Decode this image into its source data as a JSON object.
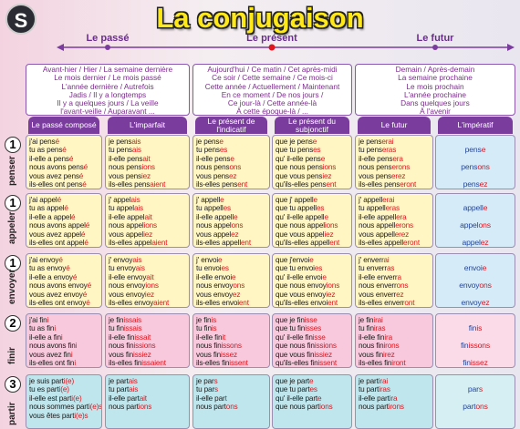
{
  "header": {
    "logo": "S",
    "title": "La conjugaison"
  },
  "timeline": [
    "Le passé",
    "Le présent",
    "Le futur"
  ],
  "time_expressions": [
    [
      "Avant-hier / Hier / La semaine dernière",
      "Le mois dernier / Le mois passé",
      "L'année dernière / Autrefois",
      "Jadis / Il y a longtemps",
      "Il y a quelques jours / La veille",
      "l'avant-veille / Auparavant ..."
    ],
    [
      "Aujourd'hui / Ce matin / Cet après-midi",
      "Ce soir / Cette semaine / Ce mois-ci",
      "Cette année / Actuellement / Maintenant",
      "En ce moment / De nos jours /",
      "Ce jour-là / Cette année-là",
      "À cette époque-là / ..."
    ],
    [
      "Demain / Après-demain",
      "La semaine prochaine",
      "Le mois prochain",
      "L'année prochaine",
      "Dans quelques jours",
      "À l'avenir"
    ]
  ],
  "tenses": [
    "Le passé composé",
    "L'imparfait",
    "Le présent de l'indicatif",
    "Le présent du subjonctif",
    "Le futur",
    "L'impératif"
  ],
  "verbs": [
    {
      "group": "1",
      "name": "penser",
      "forms": [
        [
          [
            "j'ai pens",
            "é"
          ],
          [
            "tu as pens",
            "é"
          ],
          [
            "il-elle a pens",
            "é"
          ],
          [
            "nous avons pens",
            "é"
          ],
          [
            "vous avez pens",
            "é"
          ],
          [
            "ils-elles ont pens",
            "é"
          ]
        ],
        [
          [
            "je pens",
            "ais"
          ],
          [
            "tu pens",
            "ais"
          ],
          [
            "il-elle pens",
            "ait"
          ],
          [
            "nous pens",
            "ions"
          ],
          [
            "vous pens",
            "iez"
          ],
          [
            "ils-elles pens",
            "aient"
          ]
        ],
        [
          [
            "je pens",
            "e"
          ],
          [
            "tu pens",
            "es"
          ],
          [
            "il-elle pens",
            "e"
          ],
          [
            "nous pens",
            "ons"
          ],
          [
            "vous pens",
            "ez"
          ],
          [
            "ils-elles pens",
            "ent"
          ]
        ],
        [
          [
            "que je pens",
            "e"
          ],
          [
            "que tu pens",
            "es"
          ],
          [
            "qu' il-elle pens",
            "e"
          ],
          [
            "que nous pens",
            "ions"
          ],
          [
            "que vous pens",
            "iez"
          ],
          [
            "qu'ils-elles pens",
            "ent"
          ]
        ],
        [
          [
            "je pens",
            "erai"
          ],
          [
            "tu pens",
            "eras"
          ],
          [
            "il-elle pens",
            "era"
          ],
          [
            "nous pens",
            "erons"
          ],
          [
            "vous pens",
            "erez"
          ],
          [
            "ils-elles pens",
            "eront"
          ]
        ],
        [
          [
            "pens",
            "e"
          ],
          [
            "pens",
            "ons"
          ],
          [
            "pens",
            "ez"
          ]
        ]
      ]
    },
    {
      "group": "1",
      "name": "appeler",
      "forms": [
        [
          [
            "j'ai appel",
            "é"
          ],
          [
            "tu as appel",
            "é"
          ],
          [
            "il-elle a appel",
            "é"
          ],
          [
            "nous avons appel",
            "é"
          ],
          [
            "vous avez appel",
            "é"
          ],
          [
            "ils-elles ont appel",
            "é"
          ]
        ],
        [
          [
            "j' appel",
            "ais"
          ],
          [
            "tu appel",
            "ais"
          ],
          [
            "il-elle appel",
            "ait"
          ],
          [
            "nous appel",
            "ions"
          ],
          [
            "vous appel",
            "iez"
          ],
          [
            "ils-elles appel",
            "aient"
          ]
        ],
        [
          [
            "j' appell",
            "e"
          ],
          [
            "tu appell",
            "es"
          ],
          [
            "il-elle appell",
            "e"
          ],
          [
            "nous appel",
            "ons"
          ],
          [
            "vous appel",
            "ez"
          ],
          [
            "ils-elles appell",
            "ent"
          ]
        ],
        [
          [
            "que j' appell",
            "e"
          ],
          [
            "que tu appell",
            "es"
          ],
          [
            "qu' il-elle appell",
            "e"
          ],
          [
            "que nous appel",
            "ions"
          ],
          [
            "que vous appel",
            "iez"
          ],
          [
            "qu'ils-elles appell",
            "ent"
          ]
        ],
        [
          [
            "j' appell",
            "erai"
          ],
          [
            "tu appell",
            "eras"
          ],
          [
            "il-elle appell",
            "era"
          ],
          [
            "nous appell",
            "erons"
          ],
          [
            "vous appell",
            "erez"
          ],
          [
            "ils-elles appell",
            "eront"
          ]
        ],
        [
          [
            "appell",
            "e"
          ],
          [
            "appel",
            "ons"
          ],
          [
            "appel",
            "ez"
          ]
        ]
      ]
    },
    {
      "group": "1",
      "name": "envoyer",
      "forms": [
        [
          [
            "j'ai envoy",
            "é"
          ],
          [
            "tu as envoy",
            "é"
          ],
          [
            "il-elle a envoy",
            "é"
          ],
          [
            "nous avons envoy",
            "é"
          ],
          [
            "vous avez envoy",
            "é"
          ],
          [
            "ils-elles ont envoy",
            "é"
          ]
        ],
        [
          [
            "j' envoy",
            "ais"
          ],
          [
            "tu envoy",
            "ais"
          ],
          [
            "il-elle envoy",
            "ait"
          ],
          [
            "nous envoy",
            "ions"
          ],
          [
            "vous envoy",
            "iez"
          ],
          [
            "ils-elles envoy",
            "aient"
          ]
        ],
        [
          [
            "j' envoi",
            "e"
          ],
          [
            "tu envoi",
            "es"
          ],
          [
            "il-elle envoi",
            "e"
          ],
          [
            "nous envoy",
            "ons"
          ],
          [
            "vous envoy",
            "ez"
          ],
          [
            "ils-elles envoi",
            "ent"
          ]
        ],
        [
          [
            "que j'envoi",
            "e"
          ],
          [
            "que tu envoi",
            "es"
          ],
          [
            "qu' il-elle envoi",
            "e"
          ],
          [
            "que nous envoy",
            "ions"
          ],
          [
            "que vous envoy",
            "iez"
          ],
          [
            "qu'ils-elles envoi",
            "ent"
          ]
        ],
        [
          [
            "j' enverr",
            "ai"
          ],
          [
            "tu enverr",
            "as"
          ],
          [
            "il-elle enverr",
            "a"
          ],
          [
            "nous enverr",
            "ons"
          ],
          [
            "vous enverr",
            "ez"
          ],
          [
            "ils-elles enverr",
            "ont"
          ]
        ],
        [
          [
            "envoi",
            "e"
          ],
          [
            "envoy",
            "ons"
          ],
          [
            "envoy",
            "ez"
          ]
        ]
      ]
    },
    {
      "group": "2",
      "name": "finir",
      "forms": [
        [
          [
            "j'ai fin",
            "i"
          ],
          [
            "tu as fin",
            "i"
          ],
          [
            "il-elle a fin",
            "i"
          ],
          [
            "nous avons fin",
            "i"
          ],
          [
            "vous avez fin",
            "i"
          ],
          [
            "ils-elles ont fin",
            "i"
          ]
        ],
        [
          [
            "je fin",
            "issais"
          ],
          [
            "tu fin",
            "issais"
          ],
          [
            "il-elle fin",
            "issait"
          ],
          [
            "nous fin",
            "issions"
          ],
          [
            "vous fin",
            "issiez"
          ],
          [
            "ils-elles fin",
            "issaient"
          ]
        ],
        [
          [
            "je fin",
            "is"
          ],
          [
            "tu fin",
            "is"
          ],
          [
            "il-elle fin",
            "it"
          ],
          [
            "nous fin",
            "issons"
          ],
          [
            "vous fin",
            "issez"
          ],
          [
            "ils-elles fin",
            "issent"
          ]
        ],
        [
          [
            "que je fin",
            "isse"
          ],
          [
            "que tu fin",
            "isses"
          ],
          [
            "qu' il-elle fin",
            "isse"
          ],
          [
            "que nous fin",
            "issions"
          ],
          [
            "que vous fin",
            "issiez"
          ],
          [
            "qu'ils-elles fin",
            "issent"
          ]
        ],
        [
          [
            "je fin",
            "irai"
          ],
          [
            "tu fin",
            "iras"
          ],
          [
            "il-elle fin",
            "ira"
          ],
          [
            "nous fin",
            "irons"
          ],
          [
            "vous fin",
            "irez"
          ],
          [
            "ils-elles fin",
            "iront"
          ]
        ],
        [
          [
            "fin",
            "is"
          ],
          [
            "fin",
            "issons"
          ],
          [
            "fin",
            "issez"
          ]
        ]
      ]
    },
    {
      "group": "3",
      "name": "partir",
      "forms": [
        [
          [
            "je suis part",
            "i(e)"
          ],
          [
            "tu es part",
            "i(e)"
          ],
          [
            "il-elle est part",
            "i(e)"
          ],
          [
            "nous sommes part",
            "i(e)s"
          ],
          [
            "vous êtes part",
            "i(e)s"
          ]
        ],
        [
          [
            "je part",
            "ais"
          ],
          [
            "tu part",
            "ais"
          ],
          [
            "il-elle part",
            "ait"
          ],
          [
            "nous part",
            "ions"
          ]
        ],
        [
          [
            "je par",
            "s"
          ],
          [
            "tu par",
            "s"
          ],
          [
            "il-elle par",
            "t"
          ],
          [
            "nous part",
            "ons"
          ]
        ],
        [
          [
            "que je part",
            "e"
          ],
          [
            "que tu part",
            "es"
          ],
          [
            "qu' il-elle part",
            "e"
          ],
          [
            "que nous part",
            "ions"
          ]
        ],
        [
          [
            "je part",
            "irai"
          ],
          [
            "tu part",
            "iras"
          ],
          [
            "il-elle part",
            "ira"
          ],
          [
            "nous part",
            "irons"
          ]
        ],
        [
          [
            "par",
            "s"
          ],
          [
            "part",
            "ons"
          ]
        ]
      ]
    }
  ]
}
